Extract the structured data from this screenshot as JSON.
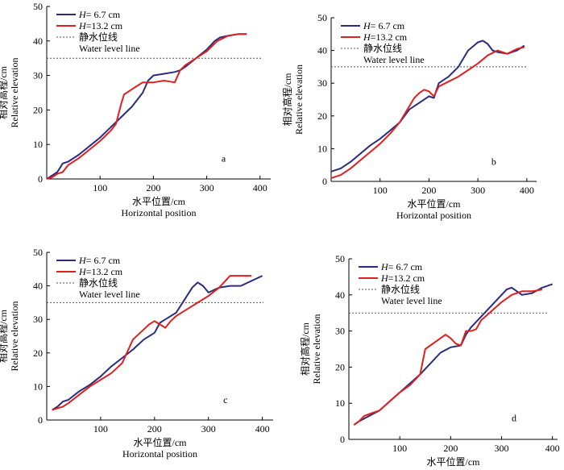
{
  "colors": {
    "s1": "#2b2b7f",
    "s2": "#e02020",
    "water": "#555555"
  },
  "legend": {
    "s1_label": "H= 6.7 cm",
    "s2_label": "H=13.2 cm",
    "water_zh": "静水位线",
    "water_en": "Water level line"
  },
  "xlabel_zh": "水平位置/cm",
  "xlabel_en": "Horizontal position",
  "ylabel_zh": "相对高程/cm",
  "ylabel_en": "Relative elevation",
  "chart_data": [
    {
      "type": "line",
      "panel": "a",
      "xlim": [
        0,
        420
      ],
      "ylim": [
        0,
        50
      ],
      "xticks": [
        100,
        200,
        300,
        400
      ],
      "yticks": [
        0,
        10,
        20,
        30,
        40,
        50
      ],
      "water_level": 35,
      "series": [
        {
          "name": "H= 6.7 cm",
          "x": [
            0,
            10,
            20,
            30,
            40,
            60,
            80,
            100,
            120,
            140,
            150,
            160,
            170,
            180,
            190,
            200,
            220,
            240,
            250,
            260,
            280,
            300,
            315,
            325,
            340,
            360,
            375
          ],
          "y": [
            0,
            1,
            2,
            4.5,
            5,
            7,
            9.5,
            12,
            15,
            18,
            19.5,
            21,
            23,
            25,
            28.5,
            30,
            30.5,
            31,
            31.5,
            32.5,
            35,
            37.5,
            40,
            41,
            41.5,
            42,
            42
          ]
        },
        {
          "name": "H=13.2 cm",
          "x": [
            0,
            10,
            20,
            30,
            40,
            60,
            80,
            100,
            120,
            130,
            140,
            145,
            150,
            160,
            170,
            180,
            200,
            220,
            240,
            250,
            260,
            280,
            300,
            320,
            340,
            360,
            375
          ],
          "y": [
            0,
            0.5,
            1.5,
            2,
            4,
            6,
            8.5,
            11,
            14,
            16,
            22,
            24.5,
            25,
            26,
            27,
            28,
            28,
            28.5,
            28,
            31.5,
            33,
            35,
            37,
            40,
            41.5,
            42,
            42
          ]
        }
      ]
    },
    {
      "type": "line",
      "panel": "b",
      "xlim": [
        0,
        420
      ],
      "ylim": [
        0,
        50
      ],
      "xticks": [
        100,
        200,
        300,
        400
      ],
      "yticks": [
        0,
        10,
        20,
        30,
        40,
        50
      ],
      "water_level": 35,
      "series": [
        {
          "name": "H= 6.7 cm",
          "x": [
            0,
            20,
            40,
            60,
            80,
            100,
            120,
            140,
            160,
            180,
            200,
            210,
            220,
            240,
            260,
            280,
            300,
            310,
            320,
            330,
            340,
            360,
            380,
            395
          ],
          "y": [
            3,
            4,
            6,
            8.5,
            11,
            13,
            15.5,
            18,
            22,
            24,
            26,
            25.5,
            30,
            32,
            35,
            40,
            42.5,
            43,
            42,
            40,
            39.5,
            39,
            40,
            41.5
          ]
        },
        {
          "name": "H=13.2 cm",
          "x": [
            0,
            20,
            40,
            60,
            80,
            100,
            120,
            140,
            160,
            170,
            180,
            190,
            200,
            210,
            220,
            240,
            260,
            280,
            300,
            320,
            340,
            360,
            380,
            395
          ],
          "y": [
            1,
            2,
            4,
            6.5,
            9,
            11.5,
            14.5,
            18,
            23,
            25.5,
            27,
            28,
            27.5,
            26,
            29,
            30.5,
            32,
            34,
            36,
            38.5,
            40,
            39,
            40.5,
            41
          ]
        }
      ]
    },
    {
      "type": "line",
      "panel": "c",
      "xlim": [
        0,
        420
      ],
      "ylim": [
        0,
        50
      ],
      "xticks": [
        100,
        200,
        300,
        400
      ],
      "yticks": [
        0,
        10,
        20,
        30,
        40,
        50
      ],
      "water_level": 35,
      "series": [
        {
          "name": "H= 6.7 cm",
          "x": [
            10,
            20,
            30,
            40,
            60,
            80,
            100,
            120,
            140,
            160,
            180,
            200,
            210,
            220,
            240,
            260,
            270,
            280,
            290,
            300,
            320,
            340,
            360,
            380,
            400
          ],
          "y": [
            3,
            4,
            5.5,
            6,
            8.5,
            10.5,
            13,
            16,
            18.5,
            21,
            24,
            26,
            29,
            30,
            32,
            37,
            39.5,
            41,
            40,
            38,
            39.5,
            40,
            40,
            41.5,
            43
          ]
        },
        {
          "name": "H=13.2 cm",
          "x": [
            10,
            20,
            30,
            40,
            60,
            80,
            100,
            120,
            140,
            160,
            180,
            190,
            200,
            210,
            220,
            230,
            240,
            260,
            280,
            300,
            320,
            340,
            360,
            380
          ],
          "y": [
            3,
            3.5,
            4,
            5,
            7.5,
            10,
            12,
            14,
            17,
            24,
            27,
            28.5,
            29.5,
            28.5,
            27.5,
            29.5,
            31,
            33,
            35,
            37,
            39.5,
            43,
            43,
            43
          ]
        }
      ]
    },
    {
      "type": "line",
      "panel": "d",
      "xlim": [
        0,
        410
      ],
      "ylim": [
        0,
        50
      ],
      "xticks": [
        100,
        200,
        300,
        400
      ],
      "yticks": [
        0,
        10,
        20,
        30,
        40,
        50
      ],
      "water_level": 35,
      "series": [
        {
          "name": "H= 6.7 cm",
          "x": [
            10,
            20,
            40,
            60,
            80,
            100,
            120,
            140,
            160,
            180,
            200,
            220,
            230,
            240,
            260,
            280,
            300,
            310,
            320,
            330,
            340,
            360,
            380,
            400
          ],
          "y": [
            4,
            5,
            6.5,
            8,
            10.5,
            13,
            15.5,
            18,
            21,
            24,
            25.5,
            26,
            29,
            31,
            34,
            37,
            40,
            41.5,
            42,
            41,
            40,
            40.5,
            42,
            43
          ]
        },
        {
          "name": "H=13.2 cm",
          "x": [
            10,
            20,
            30,
            40,
            60,
            80,
            100,
            120,
            140,
            150,
            160,
            180,
            190,
            200,
            210,
            220,
            230,
            240,
            250,
            260,
            280,
            300,
            320,
            340,
            360,
            380
          ],
          "y": [
            4,
            5,
            6.5,
            7,
            8,
            10.5,
            13,
            15,
            18,
            25,
            26,
            28,
            29,
            28,
            26.5,
            26,
            30,
            30,
            30.5,
            33,
            35.5,
            38,
            40,
            41,
            41,
            41.5
          ]
        }
      ]
    }
  ]
}
